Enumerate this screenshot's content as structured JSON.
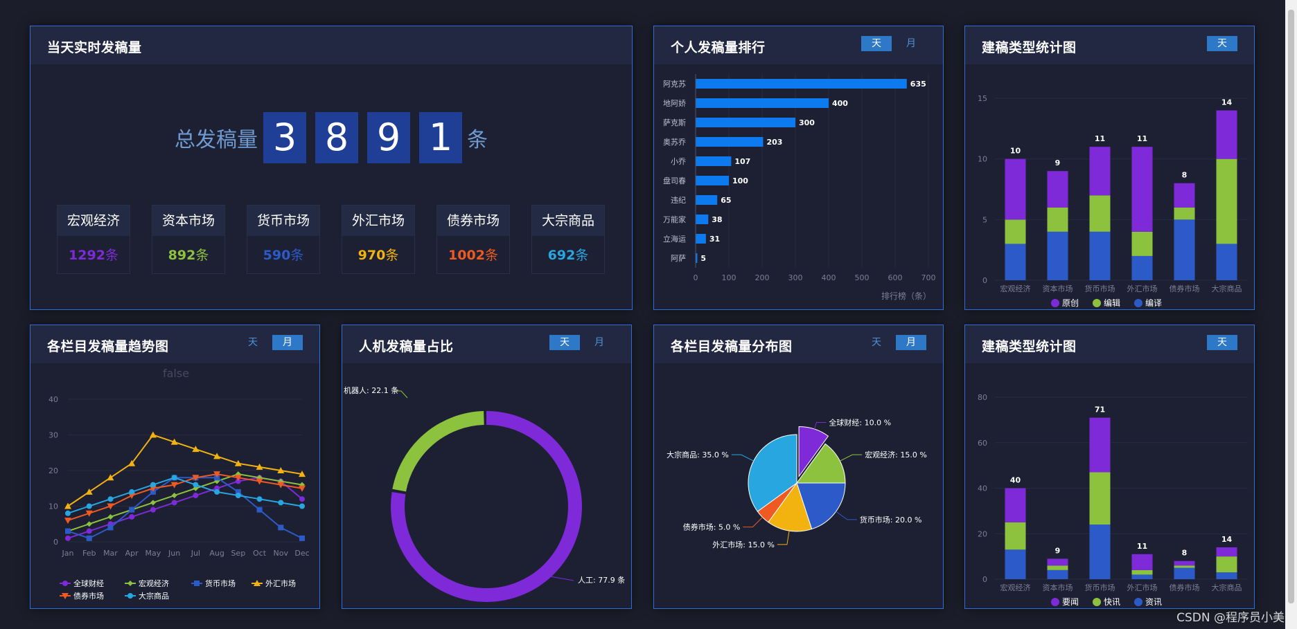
{
  "colors": {
    "purple": "#7e2ad8",
    "green": "#8dc23f",
    "blue": "#2c5bc9",
    "orange": "#f2b20f",
    "red": "#ef5a23",
    "cyan": "#28a6e0",
    "bar": "#0d7af0",
    "accent": "#2d79c7"
  },
  "panels": {
    "realtime": {
      "title": "当天实时发稿量",
      "total_label": "总发稿量",
      "digits": [
        "3",
        "8",
        "9",
        "1"
      ],
      "unit": "条",
      "categories": [
        {
          "name": "宏观经济",
          "value": "1292",
          "unit": "条",
          "color": "#7e2ad8"
        },
        {
          "name": "资本市场",
          "value": "892",
          "unit": "条",
          "color": "#8dc23f"
        },
        {
          "name": "货币市场",
          "value": "590",
          "unit": "条",
          "color": "#2c5bc9"
        },
        {
          "name": "外汇市场",
          "value": "970",
          "unit": "条",
          "color": "#f2b20f"
        },
        {
          "name": "债券市场",
          "value": "1002",
          "unit": "条",
          "color": "#ef5a23"
        },
        {
          "name": "大宗商品",
          "value": "692",
          "unit": "条",
          "color": "#28a6e0"
        }
      ]
    },
    "ranking": {
      "title": "个人发稿量排行",
      "tabs": [
        "天",
        "月"
      ],
      "active_tab": 0
    },
    "type_stat_top": {
      "title": "建稿类型统计图",
      "tabs": [
        "天"
      ],
      "active_tab": 0
    },
    "trend": {
      "title": "各栏目发稿量趋势图",
      "tabs": [
        "天",
        "月"
      ],
      "active_tab": 1
    },
    "human_machine": {
      "title": "人机发稿量占比",
      "tabs": [
        "天",
        "月"
      ],
      "active_tab": 0
    },
    "distribution": {
      "title": "各栏目发稿量分布图",
      "tabs": [
        "天",
        "月"
      ],
      "active_tab": 1
    },
    "type_stat_bottom": {
      "title": "建稿类型统计图",
      "tabs": [
        "天"
      ],
      "active_tab": 0
    }
  },
  "chart_data": [
    {
      "id": "ranking",
      "type": "bar",
      "orientation": "horizontal",
      "categories": [
        "阿克苏",
        "地阿娇",
        "萨克斯",
        "奥苏乔",
        "小乔",
        "盘司春",
        "违纪",
        "万能家",
        "立海运",
        "阿萨"
      ],
      "values": [
        635,
        400,
        300,
        203,
        107,
        100,
        65,
        38,
        31,
        5
      ],
      "xlim": [
        0,
        700
      ],
      "xticks": [
        "0",
        "100",
        "200",
        "300",
        "400",
        "500",
        "600",
        "700"
      ],
      "xlabel": "排行榜（条）",
      "grid": true
    },
    {
      "id": "type_stat_top",
      "type": "bar",
      "stacked": true,
      "categories": [
        "宏观经济",
        "资本市场",
        "货币市场",
        "外汇市场",
        "债券市场",
        "大宗商品"
      ],
      "series": [
        {
          "name": "编译",
          "values": [
            3,
            4,
            4,
            2,
            5,
            3
          ],
          "color": "#2c5bc9"
        },
        {
          "name": "编辑",
          "values": [
            2,
            2,
            3,
            2,
            1,
            7
          ],
          "color": "#8dc23f"
        },
        {
          "name": "原创",
          "values": [
            5,
            3,
            4,
            7,
            2,
            4
          ],
          "color": "#7e2ad8"
        }
      ],
      "totals": [
        "10",
        "9",
        "11",
        "11",
        "8",
        "14"
      ],
      "ylim": [
        0,
        15
      ],
      "yticks": [
        "0",
        "5",
        "10",
        "15"
      ],
      "legend": [
        "原创",
        "编辑",
        "编译"
      ],
      "legend_position": "bottom"
    },
    {
      "id": "trend",
      "type": "line",
      "title": "false",
      "categories": [
        "Jan",
        "Feb",
        "Mar",
        "Apr",
        "May",
        "Jun",
        "Jul",
        "Aug",
        "Sep",
        "Oct",
        "Nov",
        "Dec"
      ],
      "series": [
        {
          "name": "全球财经",
          "values": [
            1,
            3,
            5,
            7,
            9,
            11,
            13,
            15,
            17,
            18,
            17,
            12
          ],
          "color": "#7e2ad8",
          "marker": "circle"
        },
        {
          "name": "宏观经济",
          "values": [
            3,
            5,
            7,
            9,
            11,
            13,
            15,
            17,
            19,
            18,
            17,
            16
          ],
          "color": "#8dc23f",
          "marker": "diamond"
        },
        {
          "name": "货币市场",
          "values": [
            3,
            1,
            4,
            9,
            14,
            18,
            18,
            18,
            14,
            9,
            4,
            1
          ],
          "color": "#2c5bc9",
          "marker": "square"
        },
        {
          "name": "外汇市场",
          "values": [
            10,
            14,
            18,
            22,
            30,
            28,
            26,
            24,
            22,
            21,
            20,
            19
          ],
          "color": "#f2b20f",
          "marker": "triangle"
        },
        {
          "name": "债券市场",
          "values": [
            6,
            8,
            10,
            13,
            15,
            16,
            18,
            19,
            18,
            17,
            16,
            15
          ],
          "color": "#ef5a23",
          "marker": "triangle-down"
        },
        {
          "name": "大宗商品",
          "values": [
            8,
            10,
            12,
            14,
            16,
            18,
            16,
            14,
            13,
            12,
            11,
            10
          ],
          "color": "#28a6e0",
          "marker": "circle"
        }
      ],
      "ylim": [
        0,
        40
      ],
      "yticks": [
        "0",
        "10",
        "20",
        "30",
        "40"
      ],
      "legend_position": "bottom"
    },
    {
      "id": "human_machine",
      "type": "pie",
      "donut": true,
      "slices": [
        {
          "label": "人工",
          "value": 77.9,
          "text": "人工: 77.9 条",
          "color": "#7e2ad8"
        },
        {
          "label": "机器人",
          "value": 22.1,
          "text": "机器人: 22.1 条",
          "color": "#8dc23f"
        }
      ]
    },
    {
      "id": "distribution",
      "type": "pie",
      "slices": [
        {
          "label": "全球财经",
          "value": 10,
          "text": "全球财经: 10.0 %",
          "color": "#7e2ad8"
        },
        {
          "label": "宏观经济",
          "value": 15,
          "text": "宏观经济: 15.0 %",
          "color": "#8dc23f"
        },
        {
          "label": "货币市场",
          "value": 20,
          "text": "货币市场: 20.0 %",
          "color": "#2c5bc9"
        },
        {
          "label": "外汇市场",
          "value": 15,
          "text": "外汇市场: 15.0 %",
          "color": "#f2b20f"
        },
        {
          "label": "债券市场",
          "value": 5,
          "text": "债券市场: 5.0 %",
          "color": "#ef5a23"
        },
        {
          "label": "大宗商品",
          "value": 35,
          "text": "大宗商品: 35.0 %",
          "color": "#28a6e0"
        }
      ]
    },
    {
      "id": "type_stat_bottom",
      "type": "bar",
      "stacked": true,
      "categories": [
        "宏观经济",
        "资本市场",
        "货币市场",
        "外汇市场",
        "债券市场",
        "大宗商品"
      ],
      "series": [
        {
          "name": "资讯",
          "values": [
            13,
            4,
            24,
            2,
            5,
            3
          ],
          "color": "#2c5bc9"
        },
        {
          "name": "快讯",
          "values": [
            12,
            2,
            23,
            2,
            1,
            7
          ],
          "color": "#8dc23f"
        },
        {
          "name": "要闻",
          "values": [
            15,
            3,
            24,
            7,
            2,
            4
          ],
          "color": "#7e2ad8"
        }
      ],
      "totals": [
        "40",
        "9",
        "71",
        "11",
        "8",
        "14"
      ],
      "ylim": [
        0,
        80
      ],
      "yticks": [
        "0",
        "20",
        "40",
        "60",
        "80"
      ],
      "legend": [
        "要闻",
        "快讯",
        "资讯"
      ],
      "legend_position": "bottom"
    }
  ],
  "footer": {
    "watermark": "CSDN @程序员小美"
  }
}
